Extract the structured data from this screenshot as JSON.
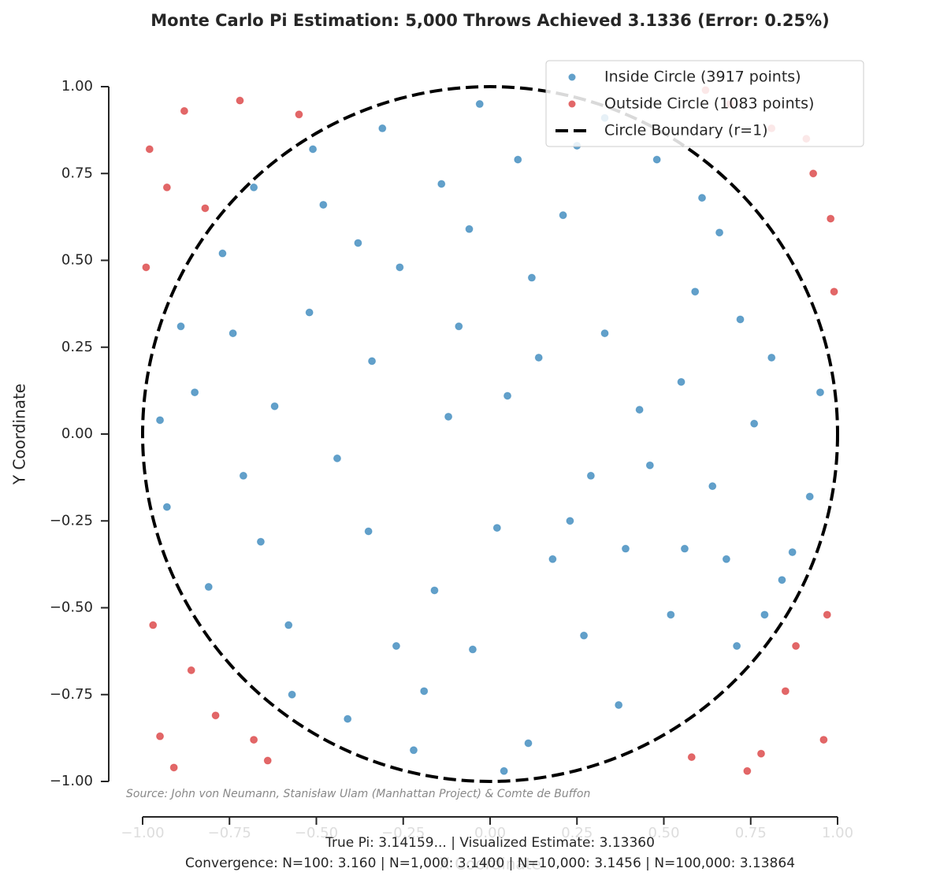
{
  "chart_data": {
    "type": "scatter",
    "title": "Monte Carlo Pi Estimation: 5,000 Throws Achieved 3.1336 (Error: 0.25%)",
    "xlabel": "X Coordinate",
    "ylabel": "Y Coordinate",
    "xlim": [
      -1,
      1
    ],
    "ylim": [
      -1,
      1
    ],
    "xticks": [
      {
        "value": -1,
        "label": "−1.00"
      },
      {
        "value": -0.75,
        "label": "−0.75"
      },
      {
        "value": -0.5,
        "label": "−0.50"
      },
      {
        "value": -0.25,
        "label": "−0.25"
      },
      {
        "value": 0,
        "label": "0.00"
      },
      {
        "value": 0.25,
        "label": "0.25"
      },
      {
        "value": 0.5,
        "label": "0.50"
      },
      {
        "value": 0.75,
        "label": "0.75"
      },
      {
        "value": 1,
        "label": "1.00"
      }
    ],
    "yticks": [
      {
        "value": -1,
        "label": "−1.00"
      },
      {
        "value": -0.75,
        "label": "−0.75"
      },
      {
        "value": -0.5,
        "label": "−0.50"
      },
      {
        "value": -0.25,
        "label": "−0.25"
      },
      {
        "value": 0,
        "label": "0.00"
      },
      {
        "value": 0.25,
        "label": "0.25"
      },
      {
        "value": 0.5,
        "label": "0.50"
      },
      {
        "value": 0.75,
        "label": "0.75"
      },
      {
        "value": 1,
        "label": "1.00"
      }
    ],
    "legend": "upper right",
    "series": [
      {
        "name": "Inside Circle (3917 points)",
        "color": "#1f77b4",
        "x": [
          0.12,
          -0.34,
          0.56,
          -0.71,
          0.25,
          -0.05,
          0.81,
          -0.48,
          0.37,
          -0.22,
          0.66,
          -0.89,
          0.05,
          0.92,
          -0.58,
          0.43,
          -0.14,
          0.71,
          -0.35,
          0.18,
          -0.77,
          0.59,
          -0.03,
          0.29,
          -0.62,
          0.84,
          -0.41,
          0.11,
          0.48,
          -0.93,
          0.76,
          -0.26,
          0.33,
          -0.52,
          0.02,
          0.64,
          -0.81,
          0.21,
          -0.16,
          0.52,
          -0.68,
          0.95,
          -0.09,
          0.39,
          -0.44,
          0.08,
          -0.31,
          0.72,
          -0.57,
          0.27,
          -0.85,
          0.61,
          -0.19,
          0.46,
          -0.66,
          0.14,
          -0.38,
          0.87,
          -0.12,
          0.33,
          -0.74,
          0.55,
          -0.27,
          0.04,
          0.79,
          -0.51,
          0.23,
          -0.95,
          0.68,
          -0.06
        ],
        "y": [
          0.45,
          0.21,
          -0.33,
          -0.12,
          0.83,
          -0.62,
          0.22,
          0.66,
          -0.78,
          -0.91,
          0.58,
          0.31,
          0.11,
          -0.18,
          -0.55,
          0.07,
          0.72,
          -0.61,
          -0.28,
          -0.36,
          0.52,
          0.41,
          0.95,
          -0.12,
          0.08,
          -0.42,
          -0.82,
          -0.89,
          0.79,
          -0.21,
          0.03,
          0.48,
          0.29,
          0.35,
          -0.27,
          -0.15,
          -0.44,
          0.63,
          -0.45,
          -0.52,
          0.71,
          0.12,
          0.31,
          -0.33,
          -0.07,
          0.79,
          0.88,
          0.33,
          -0.75,
          -0.58,
          0.12,
          0.68,
          -0.74,
          -0.09,
          -0.31,
          0.22,
          0.55,
          -0.34,
          0.05,
          0.91,
          0.29,
          0.15,
          -0.61,
          -0.97,
          -0.52,
          0.82,
          -0.25,
          0.04,
          -0.36,
          0.59
        ]
      },
      {
        "name": "Outside Circle (1083 points)",
        "color": "#d62728",
        "x": [
          0.91,
          -0.88,
          0.78,
          -0.95,
          0.98,
          -0.72,
          0.85,
          -0.97,
          0.69,
          -0.93,
          0.96,
          -0.64,
          0.99,
          -0.82,
          0.88,
          -0.79,
          0.62,
          -0.99,
          0.74,
          -0.86,
          0.93,
          -0.55,
          0.97,
          -0.91,
          0.81,
          -0.98,
          0.58,
          -0.68
        ],
        "y": [
          0.85,
          0.93,
          -0.92,
          -0.87,
          0.62,
          0.96,
          -0.74,
          -0.55,
          0.95,
          0.71,
          -0.88,
          -0.94,
          0.41,
          0.65,
          -0.61,
          -0.81,
          0.99,
          0.48,
          -0.97,
          -0.68,
          0.75,
          0.92,
          -0.52,
          -0.96,
          0.88,
          0.82,
          -0.93,
          -0.88
        ]
      }
    ],
    "boundary": {
      "name": "Circle Boundary (r=1)",
      "color": "#000000",
      "radius": 1
    },
    "source": "Source: John von Neumann, Stanisław Ulam (Manhattan Project) & Comte de Buffon",
    "footer": [
      "True Pi: 3.14159... | Visualized Estimate: 3.13360",
      "Convergence: N=100: 3.160 | N=1,000: 3.1400 | N=10,000: 3.1456 | N=100,000: 3.13864"
    ]
  }
}
